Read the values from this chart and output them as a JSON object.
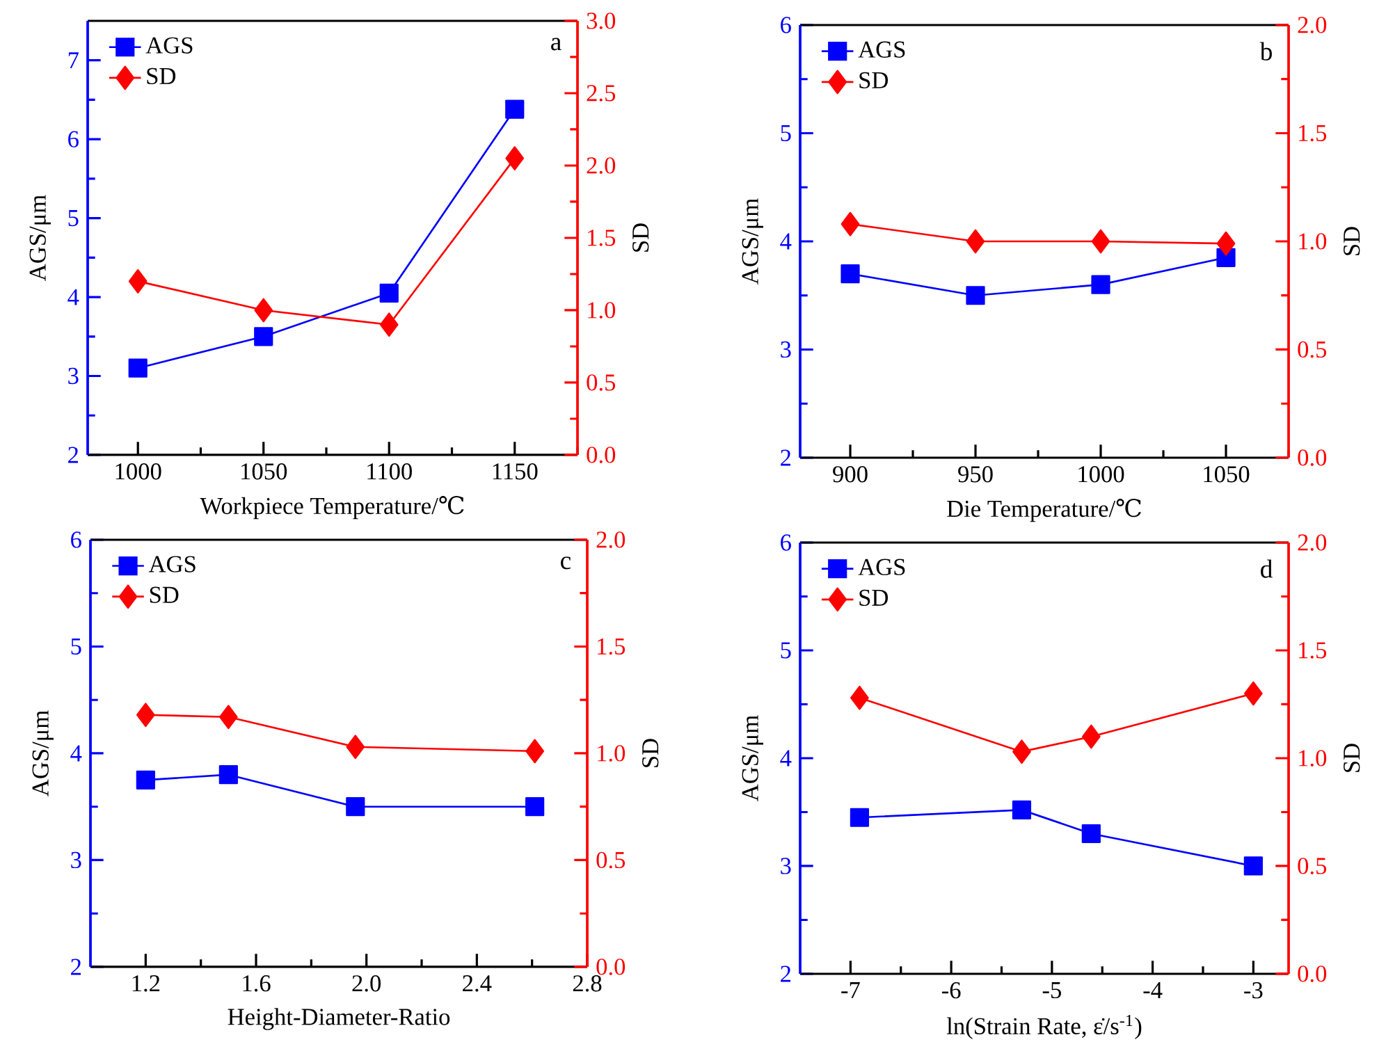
{
  "chart_data": [
    {
      "type": "line",
      "xlabel": "Workpiece Temperature/℃",
      "ylabel": "AGS/μm",
      "y2label": "SD",
      "legend": "top left",
      "annotations": [
        "a"
      ],
      "x": [
        1000,
        1050,
        1100,
        1150
      ],
      "series": [
        {
          "name": "AGS",
          "color": "#0000ff",
          "marker": "square",
          "values": [
            3.1,
            3.5,
            4.05,
            6.38
          ]
        },
        {
          "name": "SD",
          "color": "#ff0000",
          "marker": "diamond",
          "axis": "y2",
          "values": [
            1.2,
            1.0,
            0.9,
            2.05
          ]
        }
      ],
      "xlim": [
        980,
        1175
      ],
      "xticks": [
        1000,
        {
          "value": 1025,
          "label": null
        },
        1050,
        {
          "value": 1075,
          "label": null
        },
        1100,
        {
          "value": 1125,
          "label": null
        },
        1150,
        {
          "value": 1175,
          "label": null
        }
      ],
      "ylim": [
        2,
        7.5
      ],
      "yticks": [
        2,
        {
          "value": 2.5,
          "label": null
        },
        3,
        {
          "value": 3.5,
          "label": null
        },
        4,
        {
          "value": 4.5,
          "label": null
        },
        5,
        {
          "value": 5.5,
          "label": null
        },
        6,
        {
          "value": 6.5,
          "label": null
        },
        7
      ],
      "y2lim": [
        0,
        3
      ],
      "y2ticks": [
        {
          "value": 0,
          "label": "0.0"
        },
        {
          "value": 0.25,
          "label": null
        },
        0.5,
        {
          "value": 0.75,
          "label": null
        },
        {
          "value": 1,
          "label": "1.0"
        },
        {
          "value": 1.25,
          "label": null
        },
        1.5,
        {
          "value": 1.75,
          "label": null
        },
        {
          "value": 2,
          "label": "2.0"
        },
        {
          "value": 2.25,
          "label": null
        },
        2.5,
        {
          "value": 2.75,
          "label": null
        },
        {
          "value": 3,
          "label": "3.0"
        }
      ]
    },
    {
      "type": "line",
      "xlabel": "Die Temperature/℃",
      "ylabel": "AGS/μm",
      "y2label": "SD",
      "legend": "top left",
      "annotations": [
        "b"
      ],
      "x": [
        900,
        950,
        1000,
        1050
      ],
      "series": [
        {
          "name": "AGS",
          "color": "#0000ff",
          "marker": "square",
          "values": [
            3.7,
            3.5,
            3.6,
            3.85
          ]
        },
        {
          "name": "SD",
          "color": "#ff0000",
          "marker": "diamond",
          "axis": "y2",
          "values": [
            1.08,
            1.0,
            1.0,
            0.99
          ]
        }
      ],
      "xlim": [
        880,
        1075
      ],
      "xticks": [
        900,
        {
          "value": 925,
          "label": null
        },
        950,
        {
          "value": 975,
          "label": null
        },
        1000,
        {
          "value": 1025,
          "label": null
        },
        1050,
        {
          "value": 1075,
          "label": null
        }
      ],
      "ylim": [
        2,
        6
      ],
      "yticks": [
        2,
        {
          "value": 2.5,
          "label": null
        },
        3,
        {
          "value": 3.5,
          "label": null
        },
        4,
        {
          "value": 4.5,
          "label": null
        },
        5,
        {
          "value": 5.5,
          "label": null
        },
        6
      ],
      "y2lim": [
        0,
        2
      ],
      "y2ticks": [
        {
          "value": 0,
          "label": "0.0"
        },
        {
          "value": 0.25,
          "label": null
        },
        0.5,
        {
          "value": 0.75,
          "label": null
        },
        {
          "value": 1,
          "label": "1.0"
        },
        {
          "value": 1.25,
          "label": null
        },
        1.5,
        {
          "value": 1.75,
          "label": null
        },
        {
          "value": 2,
          "label": "2.0"
        }
      ]
    },
    {
      "type": "line",
      "xlabel": "Height-Diameter-Ratio",
      "ylabel": "AGS/μm",
      "y2label": "SD",
      "legend": "top left",
      "annotations": [
        "c"
      ],
      "x": [
        1.2,
        1.5,
        1.96,
        2.61
      ],
      "series": [
        {
          "name": "AGS",
          "color": "#0000ff",
          "marker": "square",
          "values": [
            3.75,
            3.8,
            3.5,
            3.5
          ]
        },
        {
          "name": "SD",
          "color": "#ff0000",
          "marker": "diamond",
          "axis": "y2",
          "values": [
            1.18,
            1.17,
            1.03,
            1.01
          ]
        }
      ],
      "xlim": [
        1.0,
        2.8
      ],
      "xticks": [
        1.2,
        {
          "value": 1.4,
          "label": null
        },
        1.6,
        {
          "value": 1.8,
          "label": null
        },
        {
          "value": 2.0,
          "label": "2.0"
        },
        {
          "value": 2.2,
          "label": null
        },
        2.4,
        {
          "value": 2.6,
          "label": null
        },
        2.8
      ],
      "ylim": [
        2,
        6
      ],
      "yticks": [
        2,
        {
          "value": 2.5,
          "label": null
        },
        3,
        {
          "value": 3.5,
          "label": null
        },
        4,
        {
          "value": 4.5,
          "label": null
        },
        5,
        {
          "value": 5.5,
          "label": null
        },
        6
      ],
      "y2lim": [
        0,
        2
      ],
      "y2ticks": [
        {
          "value": 0,
          "label": "0.0"
        },
        {
          "value": 0.25,
          "label": null
        },
        0.5,
        {
          "value": 0.75,
          "label": null
        },
        {
          "value": 1,
          "label": "1.0"
        },
        {
          "value": 1.25,
          "label": null
        },
        1.5,
        {
          "value": 1.75,
          "label": null
        },
        {
          "value": 2,
          "label": "2.0"
        }
      ]
    },
    {
      "type": "line",
      "xlabel": "ln(Strain Rate, ε̇/s$^{-1}$)",
      "ylabel": "AGS/μm",
      "y2label": "SD",
      "legend": "top left",
      "annotations": [
        "d"
      ],
      "x": [
        -6.91,
        -5.3,
        -4.61,
        -3.0
      ],
      "series": [
        {
          "name": "AGS",
          "color": "#0000ff",
          "marker": "square",
          "values": [
            3.45,
            3.52,
            3.3,
            3.0
          ]
        },
        {
          "name": "SD",
          "color": "#ff0000",
          "marker": "diamond",
          "axis": "y2",
          "values": [
            1.28,
            1.03,
            1.1,
            1.3
          ]
        }
      ],
      "xlim": [
        -7.5,
        -2.65
      ],
      "xticks": [
        -7,
        {
          "value": -6.5,
          "label": null
        },
        -6,
        {
          "value": -5.5,
          "label": null
        },
        -5,
        {
          "value": -4.5,
          "label": null
        },
        -4,
        {
          "value": -3.5,
          "label": null
        },
        -3
      ],
      "ylim": [
        2,
        6
      ],
      "yticks": [
        2,
        {
          "value": 2.5,
          "label": null
        },
        3,
        {
          "value": 3.5,
          "label": null
        },
        4,
        {
          "value": 4.5,
          "label": null
        },
        5,
        {
          "value": 5.5,
          "label": null
        },
        6
      ],
      "y2lim": [
        0,
        2
      ],
      "y2ticks": [
        {
          "value": 0,
          "label": "0.0"
        },
        {
          "value": 0.25,
          "label": null
        },
        0.5,
        {
          "value": 0.75,
          "label": null
        },
        {
          "value": 1,
          "label": "1.0"
        },
        {
          "value": 1.25,
          "label": null
        },
        1.5,
        {
          "value": 1.75,
          "label": null
        },
        {
          "value": 2,
          "label": "2.0"
        }
      ]
    }
  ]
}
